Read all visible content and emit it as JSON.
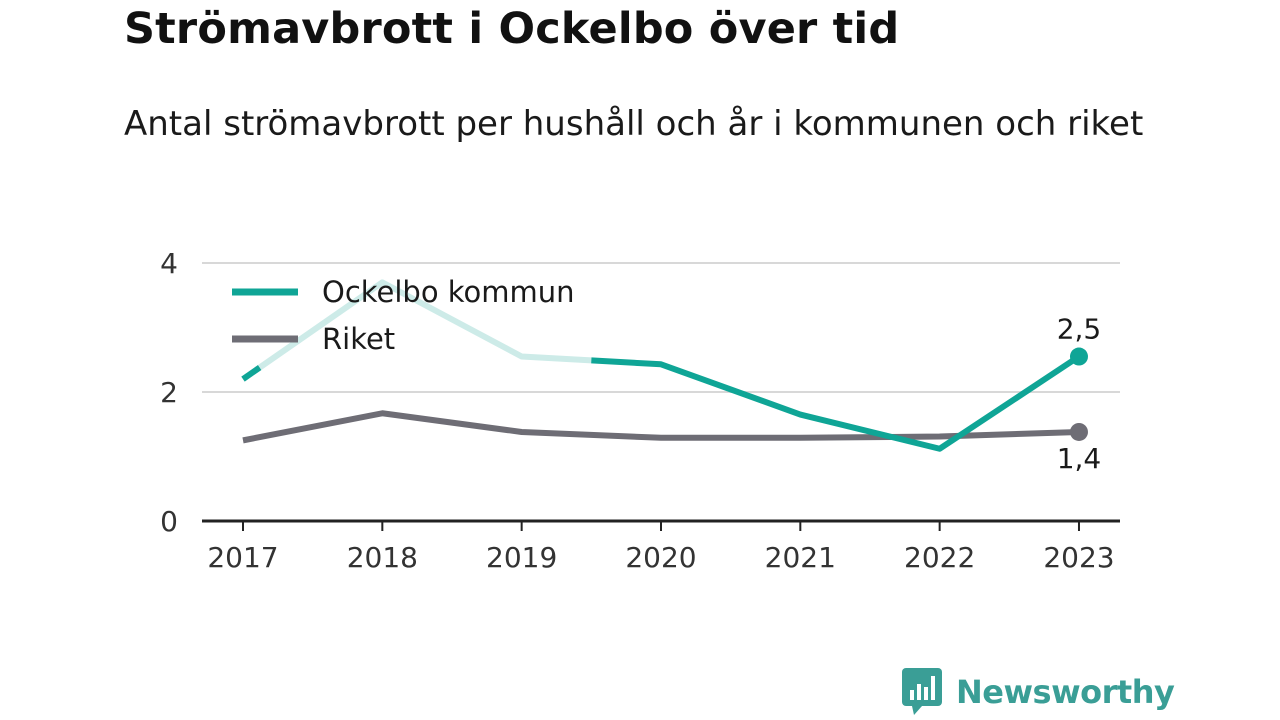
{
  "title": "Strömavbrott i Ockelbo över tid",
  "subtitle": "Antal strömavbrott per hushåll och år i kommunen och riket",
  "brand": "Newsworthy",
  "colors": {
    "ockelbo": "#0fa596",
    "ockelbo_faded": "#cdebe8",
    "riket": "#6e6d75",
    "grid": "#d8d8d8",
    "axis": "#222222",
    "brand": "#3a9e96"
  },
  "chart_data": {
    "type": "line",
    "x": [
      "2017",
      "2018",
      "2019",
      "2020",
      "2021",
      "2022",
      "2023"
    ],
    "ylim": [
      0,
      4
    ],
    "yticks": [
      "0",
      "2",
      "4"
    ],
    "grid": true,
    "legend_position": "top-left",
    "series": [
      {
        "name": "Ockelbo kommun",
        "values": [
          2.2,
          3.7,
          2.55,
          2.43,
          1.65,
          1.12,
          2.55
        ],
        "end_label": "2,5",
        "faded_range": [
          "2017",
          "2019.5"
        ]
      },
      {
        "name": "Riket",
        "values": [
          1.25,
          1.67,
          1.38,
          1.29,
          1.29,
          1.31,
          1.38
        ],
        "end_label": "1,4"
      }
    ]
  }
}
